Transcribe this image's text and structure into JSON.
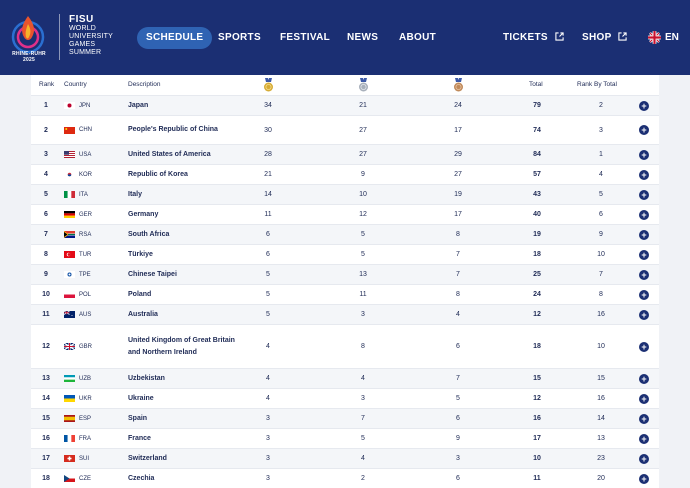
{
  "header": {
    "logo_caption": "RHINE-RUHR\n2025",
    "brand": {
      "fisu": "FISU",
      "lines": [
        "WORLD",
        "UNIVERSITY",
        "GAMES",
        "SUMMER"
      ]
    },
    "nav": [
      {
        "label": "SCHEDULE",
        "active": true
      },
      {
        "label": "SPORTS"
      },
      {
        "label": "FESTIVAL"
      },
      {
        "label": "NEWS"
      },
      {
        "label": "ABOUT"
      },
      {
        "label": "TICKETS",
        "external": true
      },
      {
        "label": "SHOP",
        "external": true
      }
    ],
    "language": "EN"
  },
  "colors": {
    "header_bg": "#1b2f73",
    "active_pill": "#2f63b3",
    "gold": "#d6ac37",
    "silver": "#a8b0bb",
    "bronze": "#c08a5b"
  },
  "table": {
    "headers": {
      "rank": "Rank",
      "country": "Country",
      "description": "Description",
      "total": "Total",
      "rank_by_total": "Rank By Total"
    },
    "rows": [
      {
        "rank": "1",
        "code": "JPN",
        "name": "Japan",
        "gold": "34",
        "silver": "21",
        "bronze": "24",
        "total": "79",
        "rbt": "2"
      },
      {
        "rank": "2",
        "code": "CHN",
        "name": "People's Republic of China",
        "gold": "30",
        "silver": "27",
        "bronze": "17",
        "total": "74",
        "rbt": "3"
      },
      {
        "rank": "3",
        "code": "USA",
        "name": "United States of America",
        "gold": "28",
        "silver": "27",
        "bronze": "29",
        "total": "84",
        "rbt": "1"
      },
      {
        "rank": "4",
        "code": "KOR",
        "name": "Republic of Korea",
        "gold": "21",
        "silver": "9",
        "bronze": "27",
        "total": "57",
        "rbt": "4"
      },
      {
        "rank": "5",
        "code": "ITA",
        "name": "Italy",
        "gold": "14",
        "silver": "10",
        "bronze": "19",
        "total": "43",
        "rbt": "5"
      },
      {
        "rank": "6",
        "code": "GER",
        "name": "Germany",
        "gold": "11",
        "silver": "12",
        "bronze": "17",
        "total": "40",
        "rbt": "6"
      },
      {
        "rank": "7",
        "code": "RSA",
        "name": "South Africa",
        "gold": "6",
        "silver": "5",
        "bronze": "8",
        "total": "19",
        "rbt": "9"
      },
      {
        "rank": "8",
        "code": "TUR",
        "name": "Türkiye",
        "gold": "6",
        "silver": "5",
        "bronze": "7",
        "total": "18",
        "rbt": "10"
      },
      {
        "rank": "9",
        "code": "TPE",
        "name": "Chinese Taipei",
        "gold": "5",
        "silver": "13",
        "bronze": "7",
        "total": "25",
        "rbt": "7"
      },
      {
        "rank": "10",
        "code": "POL",
        "name": "Poland",
        "gold": "5",
        "silver": "11",
        "bronze": "8",
        "total": "24",
        "rbt": "8"
      },
      {
        "rank": "11",
        "code": "AUS",
        "name": "Australia",
        "gold": "5",
        "silver": "3",
        "bronze": "4",
        "total": "12",
        "rbt": "16"
      },
      {
        "rank": "12",
        "code": "GBR",
        "name": "United Kingdom of Great Britain and Northern Ireland",
        "gold": "4",
        "silver": "8",
        "bronze": "6",
        "total": "18",
        "rbt": "10"
      },
      {
        "rank": "13",
        "code": "UZB",
        "name": "Uzbekistan",
        "gold": "4",
        "silver": "4",
        "bronze": "7",
        "total": "15",
        "rbt": "15"
      },
      {
        "rank": "14",
        "code": "UKR",
        "name": "Ukraine",
        "gold": "4",
        "silver": "3",
        "bronze": "5",
        "total": "12",
        "rbt": "16"
      },
      {
        "rank": "15",
        "code": "ESP",
        "name": "Spain",
        "gold": "3",
        "silver": "7",
        "bronze": "6",
        "total": "16",
        "rbt": "14"
      },
      {
        "rank": "16",
        "code": "FRA",
        "name": "France",
        "gold": "3",
        "silver": "5",
        "bronze": "9",
        "total": "17",
        "rbt": "13"
      },
      {
        "rank": "17",
        "code": "SUI",
        "name": "Switzerland",
        "gold": "3",
        "silver": "4",
        "bronze": "3",
        "total": "10",
        "rbt": "23"
      },
      {
        "rank": "18",
        "code": "CZE",
        "name": "Czechia",
        "gold": "3",
        "silver": "2",
        "bronze": "6",
        "total": "11",
        "rbt": "20"
      }
    ]
  }
}
